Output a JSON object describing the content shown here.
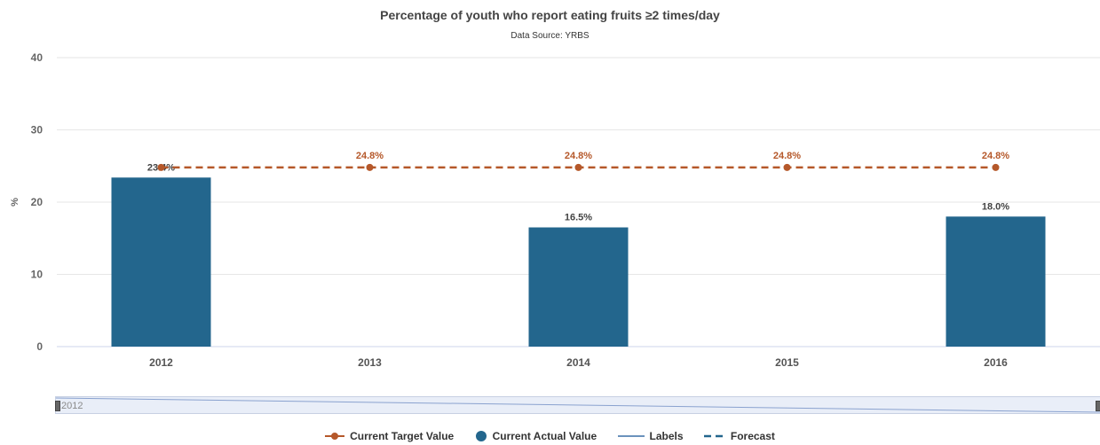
{
  "chart_data": {
    "type": "bar",
    "title": "Percentage of youth who report eating fruits ≥2 times/day",
    "subtitle": "Data Source: YRBS",
    "ylabel": "%",
    "xlabel": "",
    "ylim": [
      0,
      40
    ],
    "yticks": [
      "0",
      "10",
      "20",
      "30",
      "40"
    ],
    "categories": [
      "2012",
      "2013",
      "2014",
      "2015",
      "2016"
    ],
    "series": [
      {
        "name": "Current Actual Value",
        "kind": "bar",
        "values": [
          23.4,
          null,
          16.5,
          null,
          18.0
        ],
        "labels": [
          "23.4%",
          "",
          "16.5%",
          "",
          "18.0%"
        ]
      },
      {
        "name": "Current Target Value",
        "kind": "line-dashed",
        "values": [
          24.8,
          24.8,
          24.8,
          24.8,
          24.8
        ],
        "labels": [
          "",
          "24.8%",
          "24.8%",
          "24.8%",
          "24.8%"
        ]
      }
    ],
    "legend": [
      "Current Target Value",
      "Current Actual Value",
      "Labels",
      "Forecast"
    ],
    "legend_position": "bottom",
    "grid": true,
    "colors": {
      "bar": "#23668d",
      "target": "#b5582a",
      "labels_line": "#3a6ea5",
      "forecast": "#23668d"
    }
  },
  "navigator": {
    "label": "2012"
  }
}
